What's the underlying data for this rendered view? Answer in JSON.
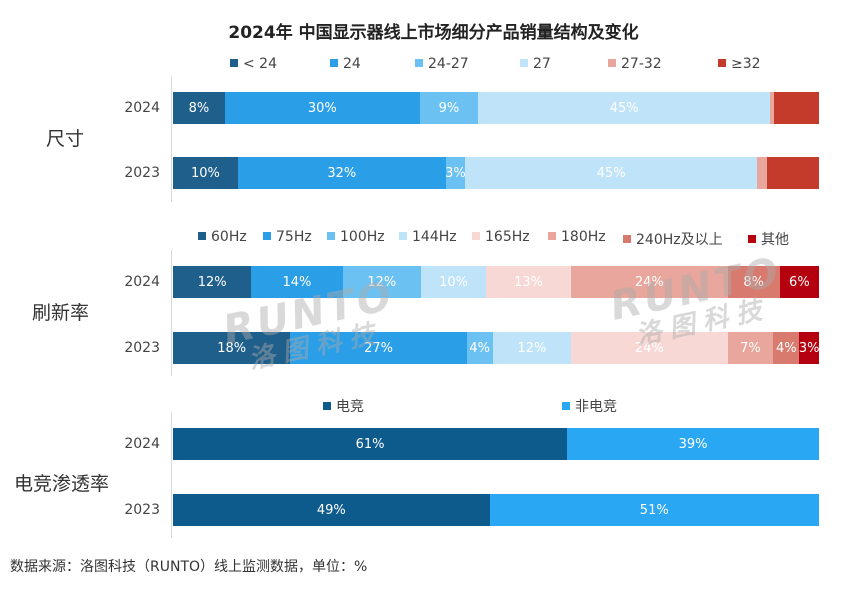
{
  "title": "2024年 中国显示器线上市场细分产品销量结构及变化",
  "footnote": "数据来源：洛图科技（RUNTO）线上监测数据，单位：%",
  "watermark": {
    "latin": "RUNTO",
    "cn": "洛图科技"
  },
  "chart_data": [
    {
      "type": "bar",
      "orientation": "horizontal-stacked-100",
      "group": "尺寸",
      "categories": [
        "2024",
        "2023"
      ],
      "series": [
        {
          "name": "< 24",
          "color": "#1f5f8b",
          "values": [
            8,
            10
          ],
          "labels": [
            "8%",
            "10%"
          ]
        },
        {
          "name": "24",
          "color": "#2a9fe8",
          "values": [
            30,
            32
          ],
          "labels": [
            "30%",
            "32%"
          ]
        },
        {
          "name": "24-27",
          "color": "#6cc1f3",
          "values": [
            9,
            3
          ],
          "labels": [
            "9%",
            "3%"
          ]
        },
        {
          "name": "27",
          "color": "#bfe3f9",
          "values": [
            45,
            45
          ],
          "labels": [
            "45%",
            "45%"
          ]
        },
        {
          "name": "27-32",
          "color": "#e8a69c",
          "values": [
            0.5,
            1.5
          ],
          "labels": [
            "",
            ""
          ]
        },
        {
          "name": "≥32",
          "color": "#c43a2b",
          "values": [
            7,
            8
          ],
          "labels": [
            "",
            ""
          ]
        }
      ]
    },
    {
      "type": "bar",
      "orientation": "horizontal-stacked-100",
      "group": "刷新率",
      "categories": [
        "2024",
        "2023"
      ],
      "series": [
        {
          "name": "60Hz",
          "color": "#1f5f8b",
          "values": [
            12,
            18
          ],
          "labels": [
            "12%",
            "18%"
          ]
        },
        {
          "name": "75Hz",
          "color": "#2a9fe8",
          "values": [
            14,
            27
          ],
          "labels": [
            "14%",
            "27%"
          ]
        },
        {
          "name": "100Hz",
          "color": "#6cc1f3",
          "values": [
            12,
            4
          ],
          "labels": [
            "12%",
            "4%"
          ]
        },
        {
          "name": "144Hz",
          "color": "#bfe3f9",
          "values": [
            10,
            12
          ],
          "labels": [
            "10%",
            "12%"
          ]
        },
        {
          "name": "165Hz",
          "color": "#f8d8d4",
          "values": [
            13,
            24
          ],
          "labels": [
            "13%",
            "24%"
          ]
        },
        {
          "name": "180Hz",
          "color": "#e8a69c",
          "values": [
            24,
            7
          ],
          "labels": [
            "24%",
            "7%"
          ]
        },
        {
          "name": "240Hz及以上",
          "color": "#d97a6e",
          "values": [
            8,
            4
          ],
          "labels": [
            "8%",
            "4%"
          ]
        },
        {
          "name": "其他",
          "color": "#b5000f",
          "values": [
            6,
            3
          ],
          "labels": [
            "6%",
            "3%"
          ]
        }
      ]
    },
    {
      "type": "bar",
      "orientation": "horizontal-stacked-100",
      "group": "电竞渗透率",
      "categories": [
        "2024",
        "2023"
      ],
      "series": [
        {
          "name": "电竞",
          "color": "#0d5a8c",
          "values": [
            61,
            49
          ],
          "labels": [
            "61%",
            "49%"
          ]
        },
        {
          "name": "非电竞",
          "color": "#2aa7f2",
          "values": [
            39,
            51
          ],
          "labels": [
            "39%",
            "51%"
          ]
        }
      ]
    }
  ]
}
